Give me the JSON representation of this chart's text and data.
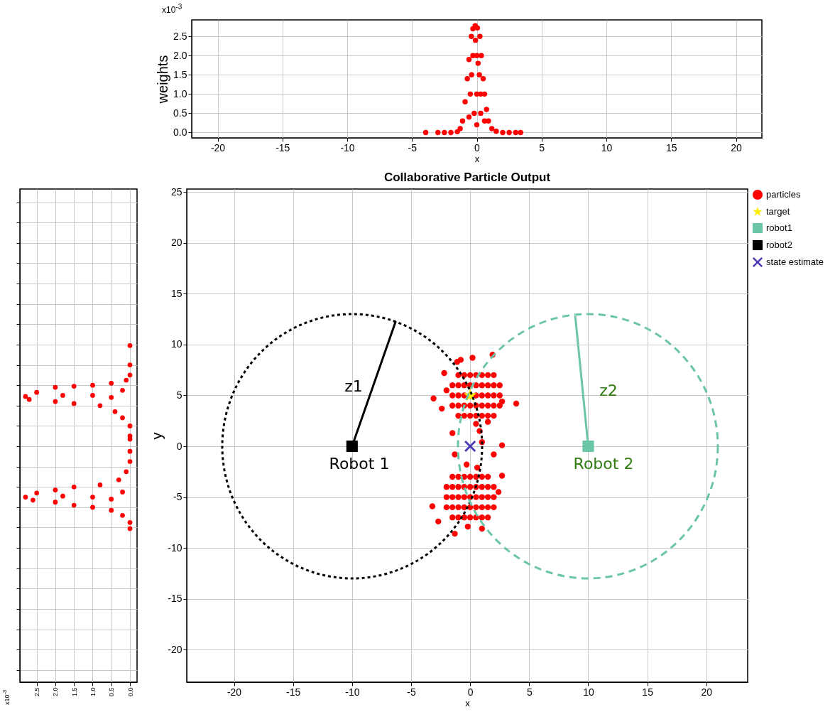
{
  "chart_data": [
    {
      "type": "scatter",
      "xlabel": "x",
      "ylabel": "weights",
      "annotations": [
        "x10$^{-3}$"
      ],
      "xlim": [
        -22,
        22
      ],
      "xticks": [
        -20,
        -15,
        -10,
        -5,
        0,
        5,
        10,
        15,
        20
      ],
      "ylim": [
        -0.14,
        2.93
      ],
      "yticks": [
        {
          "value": 0,
          "label": "0.0"
        },
        0.5,
        {
          "value": 1,
          "label": "1.0"
        },
        1.5,
        {
          "value": 2,
          "label": "2.0"
        },
        2.5
      ],
      "grid": true,
      "marker": "circle",
      "series": [
        {
          "color": "#ff0000",
          "x": [
            -3.94,
            -3,
            -2.5,
            -2,
            -1.5,
            -1.28,
            -1.1,
            -0.9,
            -0.73,
            -0.6,
            -0.42,
            -0.3,
            -0.12,
            0.05,
            0.24,
            0.35,
            0.49,
            0.6,
            0.75,
            0.9,
            1.16,
            1.5,
            2,
            2.5,
            3,
            3.38,
            -0.5,
            0,
            0.3,
            -0.3,
            0,
            0.2,
            -0.2,
            0.3,
            0,
            -0.6,
            0.6,
            -0.1,
            0.1,
            -0.4
          ],
          "values": [
            0,
            0,
            0,
            0,
            0.02,
            0.1,
            0.3,
            0.8,
            1.4,
            1.9,
            2.5,
            2.7,
            2.78,
            2.72,
            2.5,
            2.0,
            1.4,
            1.0,
            0.6,
            0.3,
            0.1,
            0.03,
            0,
            0,
            0,
            0,
            1.0,
            1.0,
            1.0,
            2.0,
            2.0,
            1.5,
            0.5,
            0.5,
            0.2,
            0.4,
            0.3,
            2.4,
            1.8,
            1.5
          ]
        }
      ]
    },
    {
      "type": "scatter",
      "annotations": [
        "x10$^{-3}$"
      ],
      "xlim": [
        2.95,
        -0.19
      ],
      "xticks": [
        {
          "value": 2.5,
          "label": "2.5"
        },
        {
          "value": 2,
          "label": "2.0"
        },
        {
          "value": 1.5,
          "label": "1.5"
        },
        {
          "value": 1,
          "label": "1.0"
        },
        {
          "value": 0.5,
          "label": "0.5"
        },
        {
          "value": 0,
          "label": "0.0"
        }
      ],
      "ylim": [
        -23.2,
        25.3
      ],
      "yticks": [
        {
          "value": -22,
          "label": null
        },
        {
          "value": -20,
          "label": null
        },
        {
          "value": -18,
          "label": null
        },
        {
          "value": -16,
          "label": null
        },
        {
          "value": -14,
          "label": null
        },
        {
          "value": -12,
          "label": null
        },
        {
          "value": -10,
          "label": null
        },
        {
          "value": -8,
          "label": null
        },
        {
          "value": -6,
          "label": null
        },
        {
          "value": -4,
          "label": null
        },
        {
          "value": -2,
          "label": null
        },
        {
          "value": 0,
          "label": null
        },
        {
          "value": 2,
          "label": null
        },
        {
          "value": 4,
          "label": null
        },
        {
          "value": 6,
          "label": null
        },
        {
          "value": 8,
          "label": null
        },
        {
          "value": 10,
          "label": null
        },
        {
          "value": 12,
          "label": null
        },
        {
          "value": 14,
          "label": null
        },
        {
          "value": 16,
          "label": null
        },
        {
          "value": 18,
          "label": null
        },
        {
          "value": 20,
          "label": null
        },
        {
          "value": 22,
          "label": null
        },
        {
          "value": 24,
          "label": null
        }
      ],
      "tick_labels": "x",
      "grid": true,
      "marker": "circle",
      "series": [
        {
          "color": "#ff0000",
          "x": [
            0,
            0,
            0,
            0.1,
            0.5,
            1.0,
            1.5,
            2.0,
            2.5,
            2.8,
            2.7,
            2.0,
            1.5,
            0.8,
            0.4,
            0.2,
            0,
            0,
            0,
            1.0,
            0.5,
            1.8,
            0.2,
            0,
            0,
            0.1,
            0.3,
            0.8,
            1.5,
            2.0,
            2.5,
            2.8,
            2.6,
            2.0,
            1.5,
            1.0,
            0.5,
            0.2,
            0,
            0,
            1.0,
            0.5,
            1.8,
            0.2
          ],
          "values": [
            9.9,
            8,
            7,
            6.5,
            6.2,
            6.0,
            5.9,
            5.8,
            5.3,
            4.9,
            4.6,
            4.4,
            4.2,
            4.0,
            3.4,
            2.8,
            2,
            1,
            0.7,
            5,
            4.8,
            5.0,
            5.5,
            -0.5,
            -1.5,
            -2.5,
            -3.3,
            -3.8,
            -4.0,
            -4.3,
            -4.6,
            -5.0,
            -5.3,
            -5.5,
            -5.8,
            -6.0,
            -6.3,
            -6.8,
            -7.5,
            -8.1,
            -5,
            -5.2,
            -4.9,
            -4.5
          ]
        }
      ]
    },
    {
      "type": "scatter",
      "title": "Collaborative Particle Output",
      "xlabel": "x",
      "ylabel": "y",
      "xlim": [
        -24,
        23.5
      ],
      "xticks": [
        -20,
        -15,
        -10,
        -5,
        0,
        5,
        10,
        15,
        20
      ],
      "ylim": [
        -23.2,
        25.3
      ],
      "yticks": [
        -20,
        -15,
        -10,
        -5,
        0,
        5,
        10,
        15,
        20,
        25
      ],
      "grid": true,
      "legend": "right",
      "annotations": [
        "z1",
        "z2",
        "Robot 1",
        "Robot 2"
      ],
      "series": [
        {
          "type": "line",
          "color": "#000000",
          "line_style": "solid",
          "x": [
            -10,
            -6.3
          ],
          "values": [
            0,
            12.3
          ]
        },
        {
          "type": "line",
          "color": "#6cc5a8",
          "line_style": "solid",
          "x": [
            10,
            8.9
          ],
          "values": [
            0,
            12.8
          ]
        },
        {
          "name": "particles",
          "color": "#ff0000",
          "marker": "circle",
          "x": [
            -1,
            -0.5,
            0,
            0.5,
            1,
            1.5,
            2,
            -1.5,
            -1,
            -0.5,
            0,
            0.5,
            1,
            1.5,
            2,
            2.5,
            -1.5,
            -1,
            -0.5,
            0,
            0.5,
            1,
            1.5,
            2,
            2.5,
            -1.5,
            -1,
            -0.5,
            0,
            0.5,
            1,
            1.5,
            2,
            2.5,
            -1,
            -0.5,
            0,
            0.5,
            1,
            1.5,
            2,
            1.9,
            0.2,
            -0.8,
            -1.1,
            -2.2,
            -3.1,
            3.9,
            2.7,
            -2.4,
            -1.5,
            0.8,
            -2,
            0.5,
            1.5,
            2.7,
            1.0,
            -1.3,
            2.0,
            -1.5,
            -1,
            -0.5,
            0,
            0.5,
            1,
            1.5,
            -2,
            -1.5,
            -1,
            -0.5,
            0,
            0.5,
            1,
            1.5,
            2,
            -2,
            -1.5,
            -1,
            -0.5,
            0,
            0.5,
            1,
            1.5,
            2,
            -2,
            -1.5,
            -1,
            -0.5,
            0,
            0.5,
            1,
            1.5,
            2,
            -1.5,
            -1,
            -0.5,
            0,
            0.5,
            1,
            1.5,
            2.7,
            -3.2,
            -2.7,
            -1.3,
            1.0,
            -0.2,
            -0.3,
            0.6,
            2.4
          ],
          "values": [
            3,
            3,
            3,
            3,
            3,
            3,
            3,
            4,
            4,
            4,
            4,
            4,
            4,
            4,
            4,
            4,
            5,
            5,
            5,
            5,
            5,
            5,
            5,
            5,
            5,
            6,
            6,
            6,
            6,
            6,
            6,
            6,
            6,
            6,
            7,
            7,
            7,
            7,
            7,
            7,
            7,
            9.0,
            8.7,
            8.5,
            8.3,
            7.2,
            4.7,
            4.2,
            4.4,
            3.7,
            1.3,
            1.5,
            5.5,
            2.2,
            2.4,
            0.1,
            0.4,
            -0.8,
            -0.8,
            -3,
            -3,
            -3,
            -3,
            -3,
            -3,
            -3,
            -4,
            -4,
            -4,
            -4,
            -4,
            -4,
            -4,
            -4,
            -4,
            -5,
            -5,
            -5,
            -5,
            -5,
            -5,
            -5,
            -5,
            -5,
            -6,
            -6,
            -6,
            -6,
            -6,
            -6,
            -6,
            -6,
            -6,
            -7,
            -7,
            -7,
            -7,
            -7,
            -7,
            -7,
            -2.9,
            -5.9,
            -7.4,
            -8.6,
            -8.1,
            -7.9,
            -1.8,
            -2.1,
            -4.5
          ]
        },
        {
          "name": "target",
          "color": "#ffee00",
          "marker": "star",
          "x": [
            0
          ],
          "values": [
            5
          ]
        },
        {
          "name": "robot1",
          "color": "#6cc5a8",
          "marker": "square",
          "x": [
            10
          ],
          "values": [
            0
          ]
        },
        {
          "name": "robot2",
          "color": "#000000",
          "marker": "square",
          "x": [
            -10
          ],
          "values": [
            0
          ]
        },
        {
          "name": "state estimate",
          "color": "#4b3bb5",
          "marker": "cross",
          "x": [
            0
          ],
          "values": [
            0
          ]
        }
      ]
    }
  ]
}
